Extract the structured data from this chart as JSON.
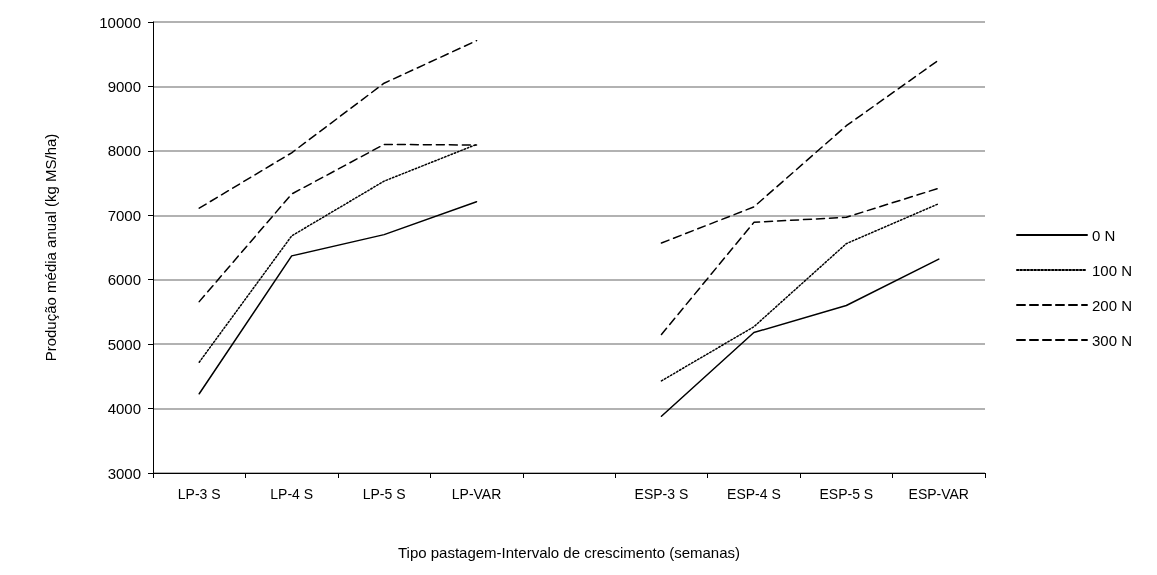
{
  "chart_data": {
    "type": "line",
    "xlabel": "Tipo pastagem-Intervalo de crescimento (semanas)",
    "ylabel": "Produção média anual (kg MS/ha)",
    "categories": [
      "LP-3 S",
      "LP-4 S",
      "LP-5 S",
      "LP-VAR",
      null,
      "ESP-3 S",
      "ESP-4 S",
      "ESP-5 S",
      "ESP-VAR"
    ],
    "series": [
      {
        "name": "0 N",
        "color": "#000000",
        "line_style": "solid",
        "values": [
          4230,
          6370,
          6700,
          7210,
          null,
          3880,
          5180,
          5600,
          6320
        ]
      },
      {
        "name": "100 N",
        "color": "#000000",
        "line_style": "dotted",
        "values": [
          4720,
          6680,
          7530,
          8100,
          null,
          4430,
          5270,
          6560,
          7180
        ]
      },
      {
        "name": "200 N",
        "color": "#000000",
        "line_style": "dashed",
        "values": [
          5660,
          7330,
          8100,
          8090,
          null,
          5150,
          6890,
          6970,
          7420
        ]
      },
      {
        "name": "300 N",
        "color": "#000000",
        "line_style": "dashed",
        "values": [
          7110,
          7970,
          9050,
          9710,
          null,
          6570,
          7130,
          8390,
          9410
        ]
      }
    ],
    "ylim": [
      3000,
      10000
    ],
    "yticks": [
      3000,
      4000,
      5000,
      6000,
      7000,
      8000,
      9000,
      10000
    ],
    "grid": "y",
    "legend": "right",
    "marker": "none"
  }
}
